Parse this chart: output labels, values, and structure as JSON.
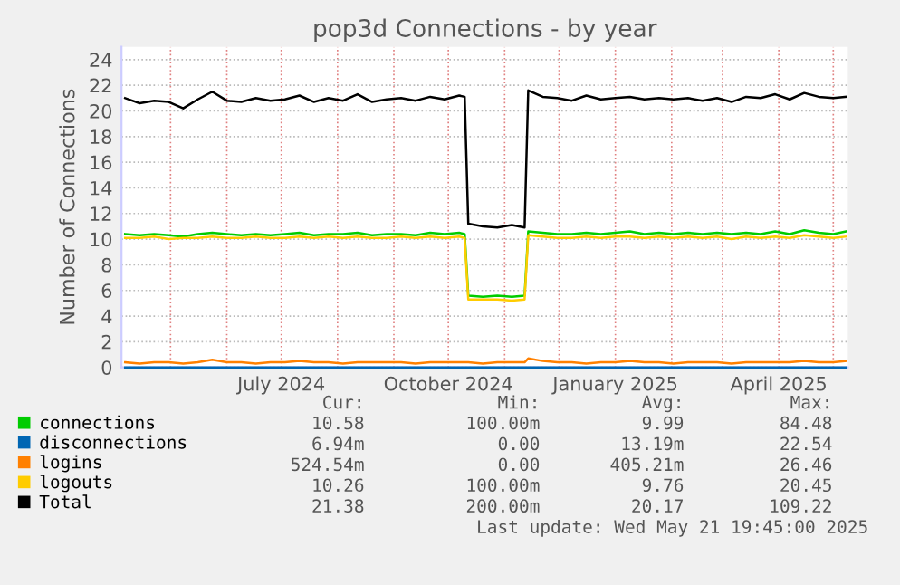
{
  "chart_data": {
    "type": "line",
    "title": "pop3d Connections - by year",
    "ylabel": "Number of Connections",
    "x": [
      "2024-04-06",
      "2024-04-14",
      "2024-04-22",
      "2024-04-30",
      "2024-05-08",
      "2024-05-16",
      "2024-05-24",
      "2024-06-01",
      "2024-06-09",
      "2024-06-17",
      "2024-06-25",
      "2024-07-03",
      "2024-07-11",
      "2024-07-19",
      "2024-07-27",
      "2024-08-04",
      "2024-08-12",
      "2024-08-20",
      "2024-08-28",
      "2024-09-05",
      "2024-09-13",
      "2024-09-21",
      "2024-09-29",
      "2024-10-07",
      "2024-10-10",
      "2024-10-12",
      "2024-10-20",
      "2024-10-28",
      "2024-11-05",
      "2024-11-12",
      "2024-11-14",
      "2024-11-22",
      "2024-11-30",
      "2024-12-08",
      "2024-12-16",
      "2024-12-24",
      "2025-01-01",
      "2025-01-09",
      "2025-01-17",
      "2025-01-25",
      "2025-02-02",
      "2025-02-10",
      "2025-02-18",
      "2025-02-26",
      "2025-03-06",
      "2025-03-14",
      "2025-03-22",
      "2025-03-30",
      "2025-04-07",
      "2025-04-15",
      "2025-04-23",
      "2025-05-01",
      "2025-05-08"
    ],
    "series": [
      {
        "name": "connections",
        "color": "#00cc00",
        "values": [
          10.4,
          10.3,
          10.4,
          10.3,
          10.2,
          10.4,
          10.5,
          10.4,
          10.3,
          10.4,
          10.3,
          10.4,
          10.5,
          10.3,
          10.4,
          10.4,
          10.5,
          10.3,
          10.4,
          10.4,
          10.3,
          10.5,
          10.4,
          10.5,
          10.4,
          5.6,
          5.5,
          5.6,
          5.5,
          5.6,
          10.6,
          10.5,
          10.4,
          10.4,
          10.5,
          10.4,
          10.5,
          10.6,
          10.4,
          10.5,
          10.4,
          10.5,
          10.4,
          10.5,
          10.4,
          10.5,
          10.4,
          10.6,
          10.4,
          10.7,
          10.5,
          10.4,
          10.6
        ]
      },
      {
        "name": "disconnections",
        "color": "#0066b3",
        "values": [
          0,
          0,
          0,
          0,
          0,
          0,
          0,
          0,
          0,
          0,
          0,
          0,
          0,
          0,
          0,
          0,
          0,
          0,
          0,
          0,
          0,
          0,
          0,
          0,
          0,
          0,
          0,
          0,
          0,
          0,
          0,
          0,
          0,
          0,
          0,
          0,
          0,
          0,
          0,
          0,
          0,
          0,
          0,
          0,
          0,
          0,
          0,
          0,
          0,
          0,
          0,
          0,
          0
        ]
      },
      {
        "name": "logins",
        "color": "#ff8000",
        "values": [
          0.4,
          0.3,
          0.4,
          0.4,
          0.3,
          0.4,
          0.6,
          0.4,
          0.4,
          0.3,
          0.4,
          0.4,
          0.5,
          0.4,
          0.4,
          0.3,
          0.4,
          0.4,
          0.4,
          0.4,
          0.3,
          0.4,
          0.4,
          0.4,
          0.4,
          0.4,
          0.3,
          0.4,
          0.4,
          0.4,
          0.7,
          0.5,
          0.4,
          0.4,
          0.3,
          0.4,
          0.4,
          0.5,
          0.4,
          0.4,
          0.3,
          0.4,
          0.4,
          0.4,
          0.3,
          0.4,
          0.4,
          0.4,
          0.4,
          0.5,
          0.4,
          0.4,
          0.5
        ]
      },
      {
        "name": "logouts",
        "color": "#ffcc00",
        "values": [
          10.1,
          10.1,
          10.2,
          10.0,
          10.1,
          10.1,
          10.2,
          10.1,
          10.1,
          10.2,
          10.1,
          10.1,
          10.2,
          10.1,
          10.2,
          10.1,
          10.2,
          10.1,
          10.1,
          10.2,
          10.1,
          10.2,
          10.1,
          10.2,
          10.1,
          5.3,
          5.3,
          5.3,
          5.2,
          5.3,
          10.3,
          10.2,
          10.1,
          10.1,
          10.2,
          10.1,
          10.2,
          10.2,
          10.1,
          10.2,
          10.1,
          10.2,
          10.1,
          10.2,
          10.0,
          10.2,
          10.1,
          10.2,
          10.1,
          10.3,
          10.2,
          10.1,
          10.2
        ]
      },
      {
        "name": "Total",
        "color": "#000000",
        "values": [
          21.0,
          20.6,
          20.8,
          20.7,
          20.2,
          20.9,
          21.5,
          20.8,
          20.7,
          21.0,
          20.8,
          20.9,
          21.2,
          20.7,
          21.0,
          20.8,
          21.3,
          20.7,
          20.9,
          21.0,
          20.8,
          21.1,
          20.9,
          21.2,
          21.1,
          11.2,
          11.0,
          10.9,
          11.1,
          10.9,
          21.6,
          21.1,
          21.0,
          20.8,
          21.2,
          20.9,
          21.0,
          21.1,
          20.9,
          21.0,
          20.9,
          21.0,
          20.8,
          21.0,
          20.7,
          21.1,
          21.0,
          21.3,
          20.9,
          21.4,
          21.1,
          21.0,
          21.1
        ]
      }
    ],
    "xlim": [
      "2024-04-04",
      "2025-05-09"
    ],
    "xticks": [
      {
        "value": "2024-05-01",
        "label": null
      },
      {
        "value": "2024-06-01",
        "label": null
      },
      {
        "value": "2024-07-01",
        "label": "July 2024"
      },
      {
        "value": "2024-08-01",
        "label": null
      },
      {
        "value": "2024-09-01",
        "label": null
      },
      {
        "value": "2024-10-01",
        "label": "October 2024"
      },
      {
        "value": "2024-11-01",
        "label": null
      },
      {
        "value": "2024-12-01",
        "label": null
      },
      {
        "value": "2025-01-01",
        "label": "January 2025"
      },
      {
        "value": "2025-02-01",
        "label": null
      },
      {
        "value": "2025-03-01",
        "label": null
      },
      {
        "value": "2025-04-01",
        "label": "April 2025"
      },
      {
        "value": "2025-05-01",
        "label": null
      }
    ],
    "ylim": [
      0,
      25
    ],
    "yticks": [
      0,
      2,
      4,
      6,
      8,
      10,
      12,
      14,
      16,
      18,
      20,
      22,
      24
    ],
    "grid": true,
    "legend": "bottom",
    "marker": "none",
    "line_style": "solid",
    "annotations": [
      "Cur:",
      "Min:",
      "Avg:",
      "Max:",
      "10.58",
      "100.00m",
      "9.99",
      "84.48",
      "6.94m",
      "0.00",
      "13.19m",
      "22.54",
      "524.54m",
      "0.00",
      "405.21m",
      "26.46",
      "10.26",
      "100.00m",
      "9.76",
      "20.45",
      "21.38",
      "200.00m",
      "20.17",
      "109.22",
      "Last update: Wed May 21 19:45:00 2025"
    ]
  }
}
